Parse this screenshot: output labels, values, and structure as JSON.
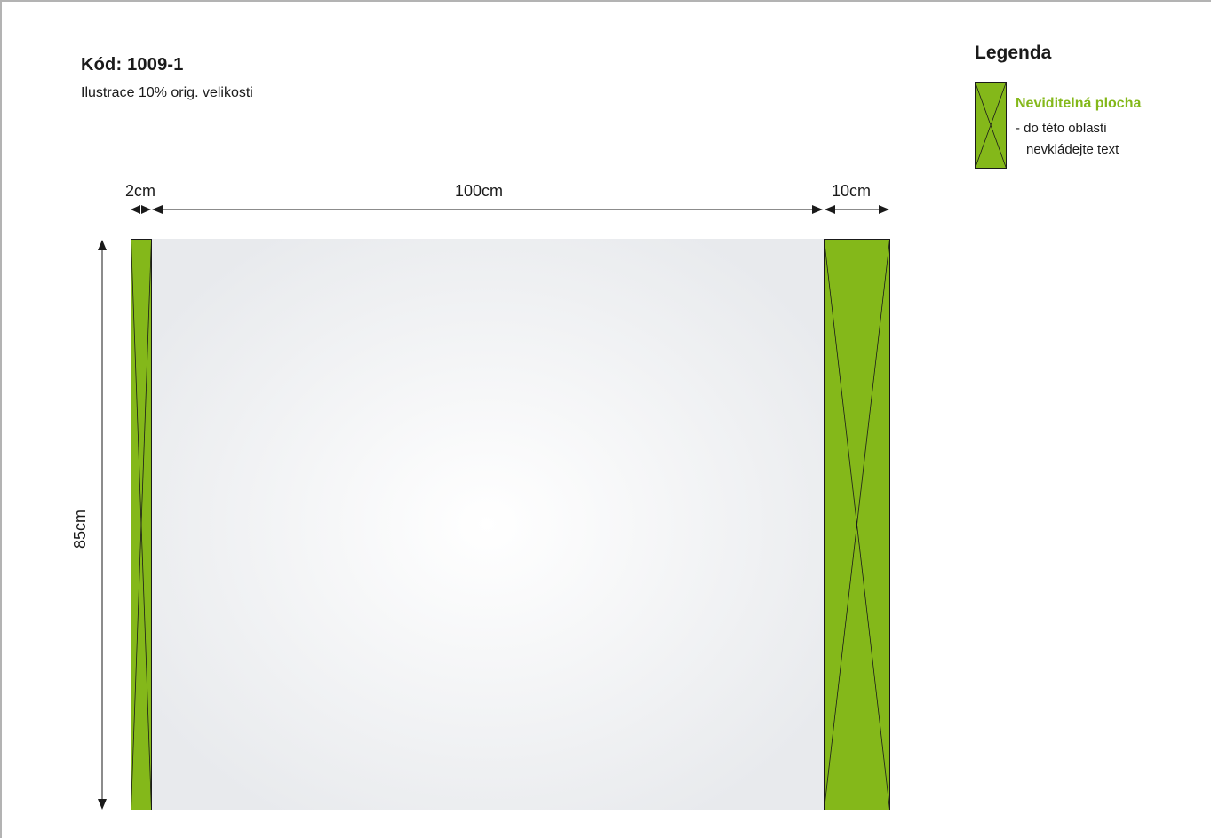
{
  "header": {
    "code": "Kód: 1009-1",
    "subtitle": "Ilustrace 10% orig. velikosti"
  },
  "legend": {
    "title": "Legenda",
    "item_name": "Neviditelná plocha",
    "item_desc_line1": "- do této oblasti",
    "item_desc_line2": "nevkládejte text"
  },
  "dimensions": {
    "left_margin": "2cm",
    "width": "100cm",
    "right_margin": "10cm",
    "height": "85cm"
  },
  "colors": {
    "invisible_area": "#84b81a",
    "legend_title_accent": "#84b81a",
    "panel_center": "#ffffff",
    "panel_edge": "#e8eaed",
    "line": "#1a1a1a"
  }
}
